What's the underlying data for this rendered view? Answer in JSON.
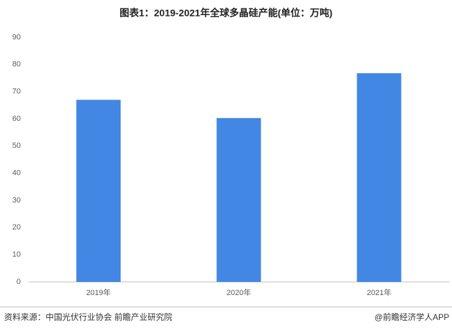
{
  "chart_data": {
    "type": "bar",
    "title": "图表1：2019-2021年全球多晶硅产能(单位：万吨)",
    "categories": [
      "2019年",
      "2020年",
      "2021年"
    ],
    "values": [
      67,
      60.3,
      76.8
    ],
    "color": "#4287e3",
    "ylim": [
      0,
      90
    ],
    "yticks": [
      0,
      10,
      20,
      30,
      40,
      50,
      60,
      70,
      80,
      90
    ],
    "grid": false,
    "source": "资料来源：中国光伏行业协会 前瞻产业研究院",
    "credit": "@前瞻经济学人APP"
  }
}
